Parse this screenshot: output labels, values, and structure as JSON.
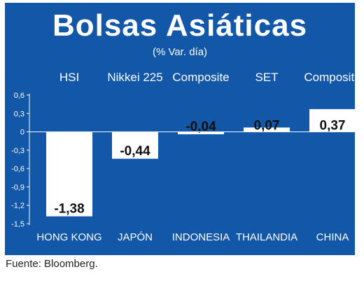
{
  "header": {
    "title": "Bolsas Asiáticas",
    "subtitle": "(% Var. día)"
  },
  "footer": {
    "source": "Fuente: Bloomberg."
  },
  "colors": {
    "background": "#1257a8",
    "bars": "#ffffff",
    "text": "#ffffff",
    "data_label": "#111111"
  },
  "chart_data": {
    "type": "bar",
    "categories": [
      "HONG KONG",
      "JAPÓN",
      "INDONESIA",
      "THAILANDIA",
      "CHINA"
    ],
    "index_names": [
      "HSI",
      "Nikkei 225",
      "Composite",
      "SET",
      "Composite"
    ],
    "values": [
      -1.38,
      -0.44,
      -0.04,
      0.07,
      0.37
    ],
    "value_labels": [
      "-1,38",
      "-0,44",
      "-0,04",
      "0,07",
      "0,37"
    ],
    "yticks": [
      0.6,
      0.3,
      0,
      -0.3,
      -0.6,
      -0.9,
      -1.2,
      -1.5
    ],
    "ytick_labels": [
      "0,6",
      "0,3",
      "0",
      "-0,3",
      "-0,6",
      "-0,9",
      "-1,2",
      "-1,5"
    ],
    "ylim": [
      -1.5,
      0.6
    ],
    "title": "Bolsas Asiáticas",
    "subtitle": "(% Var. día)",
    "xlabel": "",
    "ylabel": "",
    "grid": false
  }
}
